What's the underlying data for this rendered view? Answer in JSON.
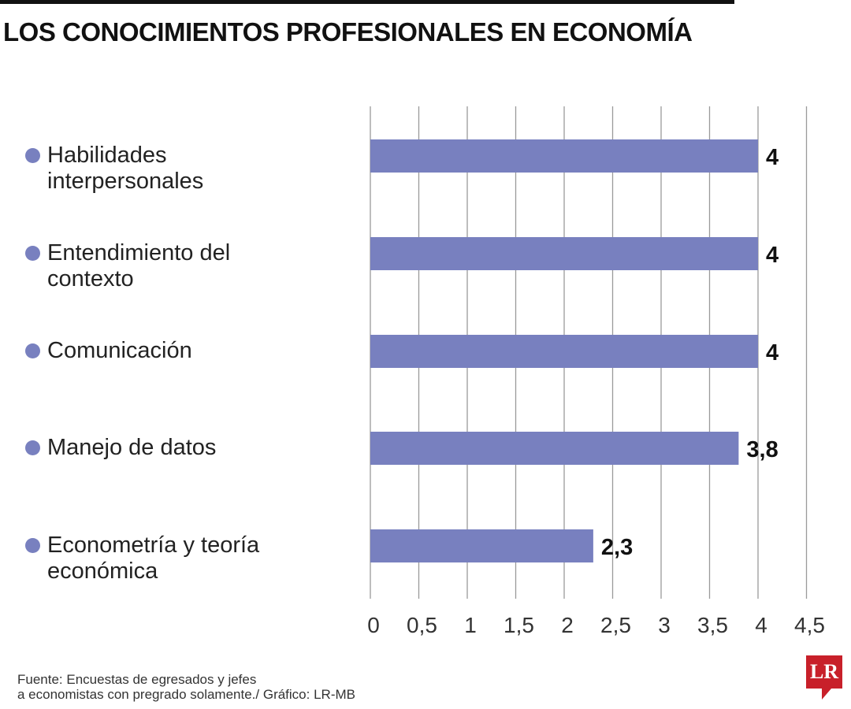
{
  "chart_data": {
    "type": "bar",
    "orientation": "horizontal",
    "title": "LOS CONOCIMIENTOS PROFESIONALES EN ECONOMÍA",
    "categories": [
      "Habilidades interpersonales",
      "Entendimiento del contexto",
      "Comunicación",
      "Manejo de datos",
      "Econometría y teoría económica"
    ],
    "values": [
      4,
      4,
      4,
      3.8,
      2.3
    ],
    "value_labels": [
      "4",
      "4",
      "4",
      "3,8",
      "2,3"
    ],
    "xlim": [
      0,
      4.5
    ],
    "xticks": [
      0,
      0.5,
      1,
      1.5,
      2,
      2.5,
      3,
      3.5,
      4,
      4.5
    ],
    "xtick_labels": [
      "0",
      "0,5",
      "1",
      "1,5",
      "2",
      "2,5",
      "3",
      "3,5",
      "4",
      "4,5"
    ],
    "grid": true,
    "bar_color": "#7880bf",
    "xlabel": "",
    "ylabel": ""
  },
  "footer": {
    "line1": "Fuente: Encuestas de egresados y jefes",
    "line2": "a economistas con pregrado solamente./ Gráfico: LR-MB"
  },
  "logo": "LR"
}
